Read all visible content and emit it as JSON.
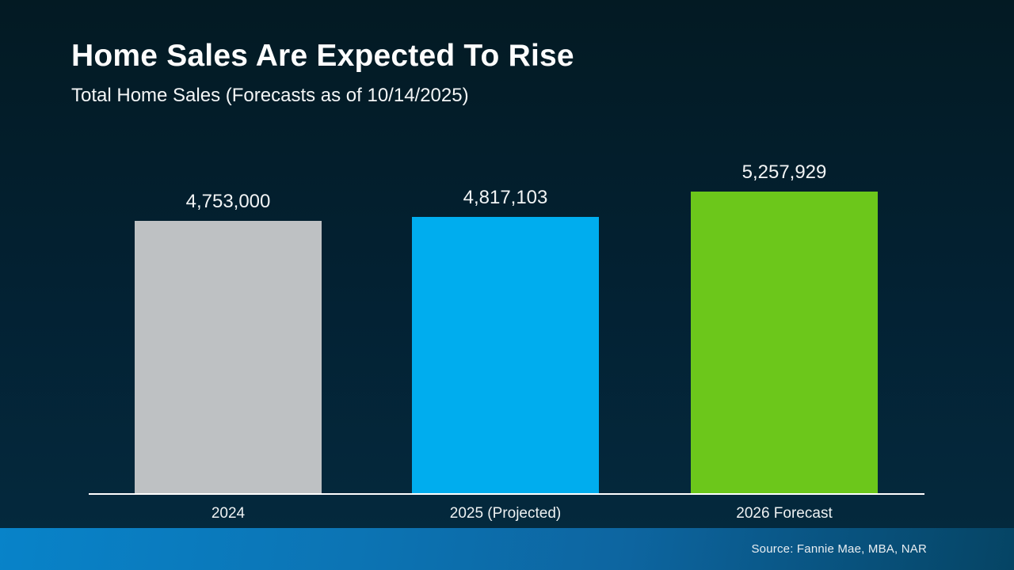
{
  "header": {
    "title": "Home Sales Are Expected To Rise",
    "subtitle": "Total Home Sales (Forecasts as of 10/14/2025)"
  },
  "chart_data": {
    "type": "bar",
    "title": "Home Sales Are Expected To Rise",
    "subtitle": "Total Home Sales (Forecasts as of 10/14/2025)",
    "categories": [
      "2024",
      "2025 (Projected)",
      "2026 Forecast"
    ],
    "values": [
      4753000,
      4817103,
      5257929
    ],
    "value_labels": [
      "4,753,000",
      "4,817,103",
      "5,257,929"
    ],
    "bar_colors": [
      "#bec1c3",
      "#00adee",
      "#6cc71b"
    ],
    "xlabel": "",
    "ylabel": "",
    "baseline": 0,
    "grid": false,
    "legend": "none",
    "axis_line_color": "#ffffff"
  },
  "footer": {
    "source_label": "Source: Fannie Mae, MBA, NAR"
  },
  "colors": {
    "background_top": "#031a23",
    "background_bottom": "#04293d",
    "bar_2024": "#bec1c3",
    "bar_2025": "#00adee",
    "bar_2026": "#6cc71b",
    "footer_gradient_left": "#0883c9",
    "footer_gradient_right": "#054464",
    "text": "#ffffff"
  }
}
